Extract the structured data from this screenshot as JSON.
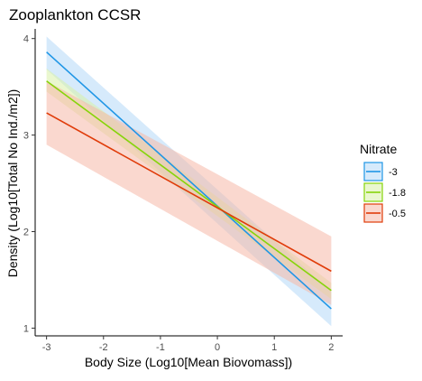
{
  "chart_data": {
    "type": "line",
    "title": "Zooplankton CCSR",
    "xlabel": "Body Size (Log10[Mean Biovomass])",
    "ylabel": "Density (Log10[Total No Ind./m2])",
    "xlim": [
      -3.2,
      2.2
    ],
    "ylim": [
      0.92,
      4.1
    ],
    "x_ticks": [
      -3,
      -2,
      -1,
      0,
      1,
      2
    ],
    "x_tick_labels": [
      "-3",
      "-2",
      "-1",
      "0",
      "1",
      "2"
    ],
    "y_ticks": [
      1,
      2,
      3,
      4
    ],
    "y_tick_labels": [
      "1",
      "2",
      "3",
      "4"
    ],
    "grid": false,
    "legend": {
      "title": "Nitrate",
      "placement": "right"
    },
    "series": [
      {
        "name": "-3",
        "color": "#1f96e6",
        "fill": "#b5d8f7",
        "x": [
          -3,
          2
        ],
        "y": [
          3.86,
          1.2
        ],
        "ci_lower": [
          3.68,
          1.02
        ],
        "ci_upper": [
          4.02,
          1.38
        ]
      },
      {
        "name": "-1.8",
        "color": "#86d40a",
        "fill": "#d8f0a8",
        "x": [
          -3,
          2
        ],
        "y": [
          3.56,
          1.39
        ],
        "ci_lower": [
          3.45,
          1.3
        ],
        "ci_upper": [
          3.69,
          1.47
        ]
      },
      {
        "name": "-0.5",
        "color": "#e03c0a",
        "fill": "#f6b8a8",
        "x": [
          -3,
          2
        ],
        "y": [
          3.23,
          1.59
        ],
        "ci_lower": [
          2.9,
          1.24
        ],
        "ci_upper": [
          3.56,
          1.95
        ]
      }
    ]
  }
}
